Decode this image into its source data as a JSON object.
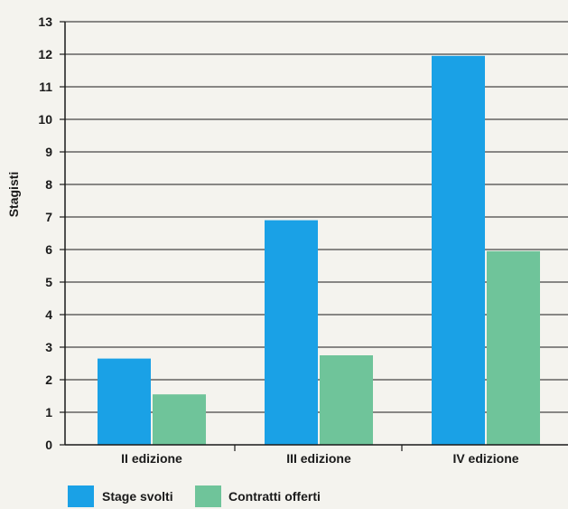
{
  "chart_data": {
    "type": "bar",
    "categories": [
      "II edizione",
      "III edizione",
      "IV edizione"
    ],
    "series": [
      {
        "name": "Stage svolti",
        "values": [
          2.65,
          6.9,
          11.95
        ],
        "color": "#1aa1e6"
      },
      {
        "name": "Contratti offerti",
        "values": [
          1.55,
          2.75,
          5.95
        ],
        "color": "#6fc49a"
      }
    ],
    "ylabel": "Stagisti",
    "xlabel": "",
    "ylim": [
      0,
      13
    ],
    "yticks": [
      0,
      1,
      2,
      3,
      4,
      5,
      6,
      7,
      8,
      9,
      10,
      11,
      12,
      13
    ],
    "grid": true,
    "legend": "bottom-left"
  }
}
